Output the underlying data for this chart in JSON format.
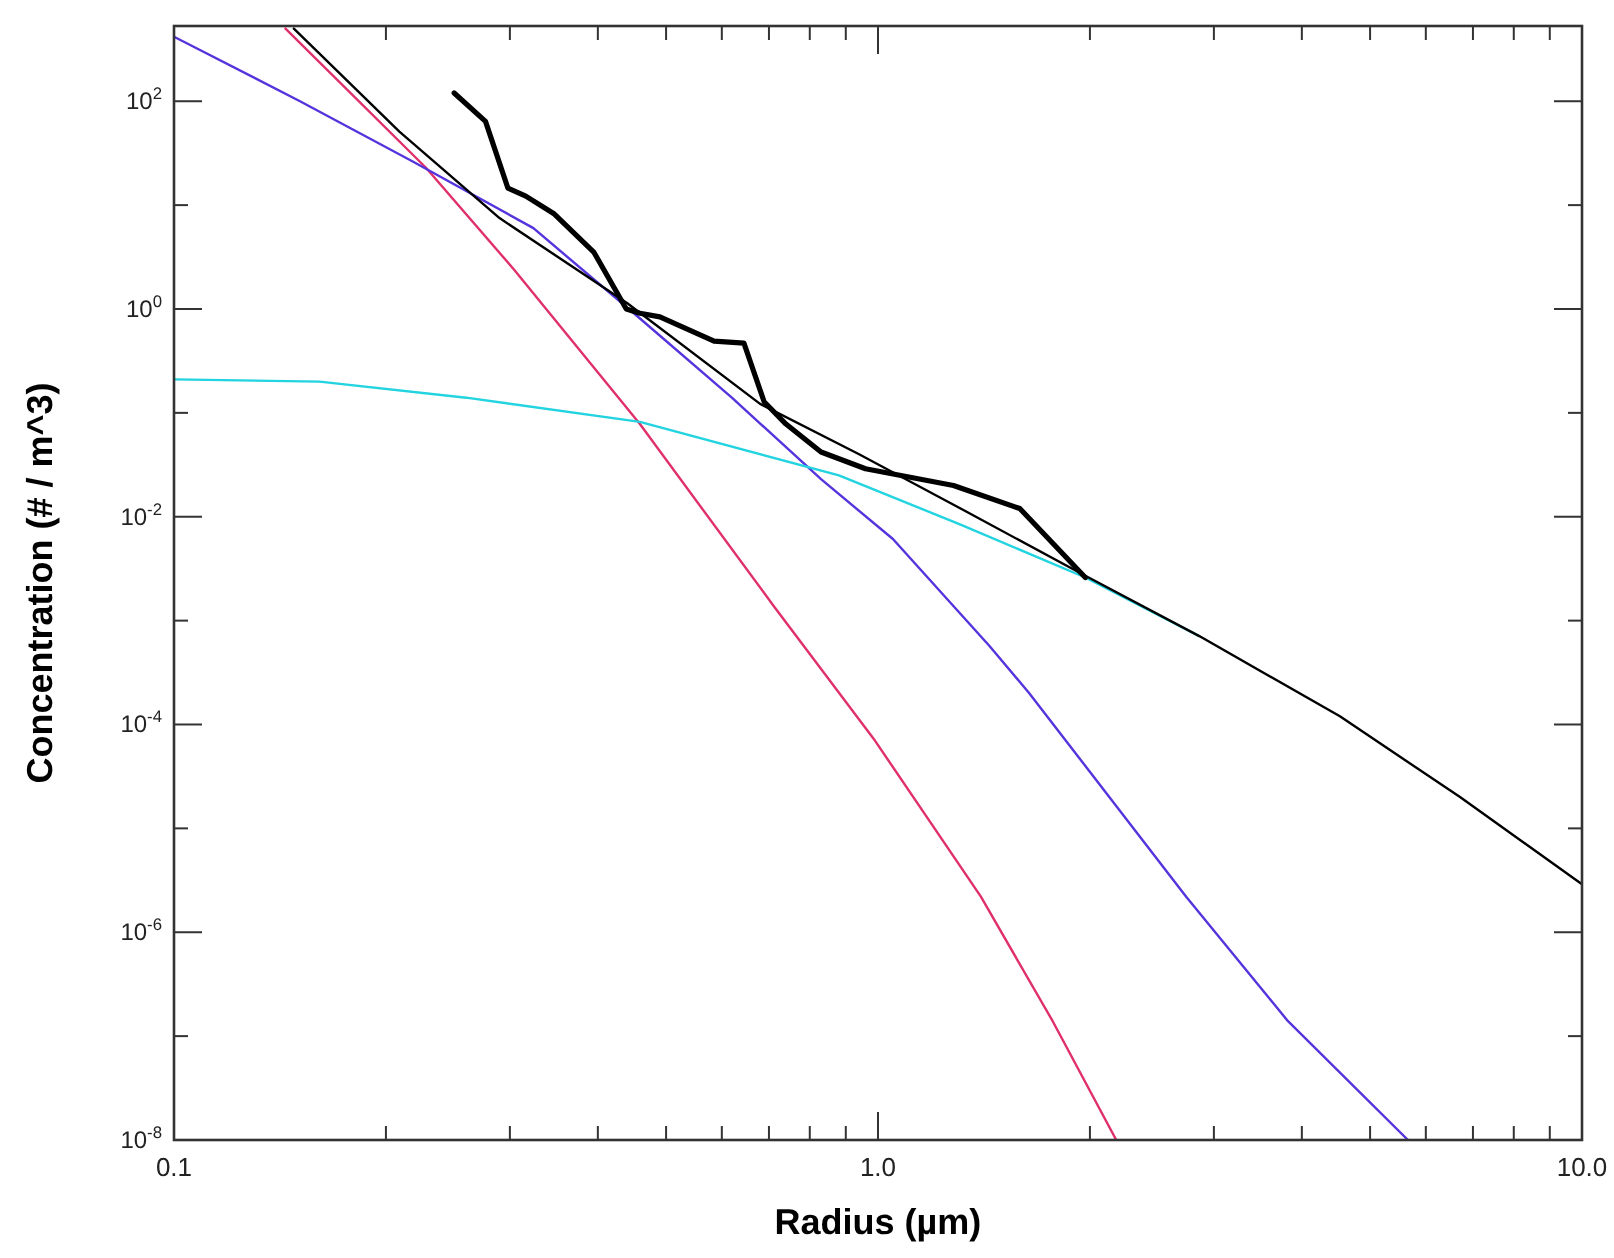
{
  "chart_data": {
    "type": "line",
    "xlabel": "Radius (µm)",
    "ylabel": "Concentration (# / m^3)",
    "log": "xy",
    "grid": false,
    "marker": "none",
    "line_style": "solid",
    "xlim": [
      0.1,
      10
    ],
    "ylim": [
      1e-08,
      530
    ],
    "xticks": [
      {
        "value": 0.1,
        "label": "0.1"
      },
      {
        "value": 0.2,
        "label": null
      },
      {
        "value": 0.3,
        "label": null
      },
      {
        "value": 0.4,
        "label": null
      },
      {
        "value": 0.5,
        "label": null
      },
      {
        "value": 0.6,
        "label": null
      },
      {
        "value": 0.7,
        "label": null
      },
      {
        "value": 0.8,
        "label": null
      },
      {
        "value": 0.9,
        "label": null
      },
      {
        "value": 1,
        "label": "1.0"
      },
      {
        "value": 2,
        "label": null
      },
      {
        "value": 3,
        "label": null
      },
      {
        "value": 4,
        "label": null
      },
      {
        "value": 5,
        "label": null
      },
      {
        "value": 6,
        "label": null
      },
      {
        "value": 7,
        "label": null
      },
      {
        "value": 8,
        "label": null
      },
      {
        "value": 9,
        "label": null
      },
      {
        "value": 10,
        "label": "10.0"
      }
    ],
    "yticks": [
      {
        "value": 1e-08,
        "label": "10$^{-8}$"
      },
      {
        "value": 1e-07,
        "label": null
      },
      {
        "value": 1e-06,
        "label": "10$^{-6}$"
      },
      {
        "value": 1e-05,
        "label": null
      },
      {
        "value": 0.0001,
        "label": "10$^{-4}$"
      },
      {
        "value": 0.001,
        "label": null
      },
      {
        "value": 0.01,
        "label": "10$^{-2}$"
      },
      {
        "value": 0.1,
        "label": null
      },
      {
        "value": 1,
        "label": "10$^{0}$"
      },
      {
        "value": 10,
        "label": null
      },
      {
        "value": 100,
        "label": "10$^{2}$"
      }
    ],
    "series": [
      {
        "color": "#e0306a",
        "x": [
          0.144,
          0.228,
          0.304,
          0.459,
          0.71,
          0.99,
          1.4,
          1.77,
          2.18
        ],
        "values": [
          500,
          22.9,
          2.4,
          0.078,
          0.0014,
          7e-05,
          2.2e-06,
          1.4e-07,
          1e-08
        ]
      },
      {
        "color": "#5533dd",
        "x": [
          0.1,
          0.151,
          0.219,
          0.324,
          0.45,
          0.62,
          0.83,
          1.05,
          1.44,
          1.64,
          2.74,
          3.82,
          5.66
        ],
        "values": [
          418,
          100,
          26,
          6.0,
          0.91,
          0.14,
          0.023,
          0.0061,
          0.00057,
          0.0002,
          2.2e-06,
          1.4e-07,
          1e-08
        ]
      },
      {
        "color": "#22d3e0",
        "x": [
          0.1,
          0.161,
          0.26,
          0.459,
          0.88,
          1.31,
          1.97,
          2.86
        ],
        "values": [
          0.21,
          0.2,
          0.14,
          0.082,
          0.025,
          0.0084,
          0.0026,
          0.00071
        ]
      },
      {
        "color": "#000000",
        "x": [
          0.148,
          0.209,
          0.29,
          0.44,
          0.68,
          0.94,
          1.31,
          1.97,
          2.86,
          4.53,
          6.71,
          10
        ],
        "values": [
          500,
          51,
          7.5,
          1.14,
          0.122,
          0.04,
          0.012,
          0.0027,
          0.00071,
          0.00012,
          2e-05,
          2.9e-06
        ]
      },
      {
        "color": "#000000",
        "x": [
          0.25,
          0.277,
          0.298,
          0.316,
          0.347,
          0.395,
          0.439,
          0.459,
          0.49,
          0.585,
          0.645,
          0.689,
          0.74,
          0.83,
          0.96,
          1.28,
          1.59,
          1.97
        ],
        "values": [
          120,
          64,
          14.6,
          12.2,
          8.2,
          3.5,
          1.0,
          0.91,
          0.84,
          0.49,
          0.47,
          0.128,
          0.078,
          0.042,
          0.029,
          0.02,
          0.012,
          0.0026
        ]
      }
    ]
  }
}
